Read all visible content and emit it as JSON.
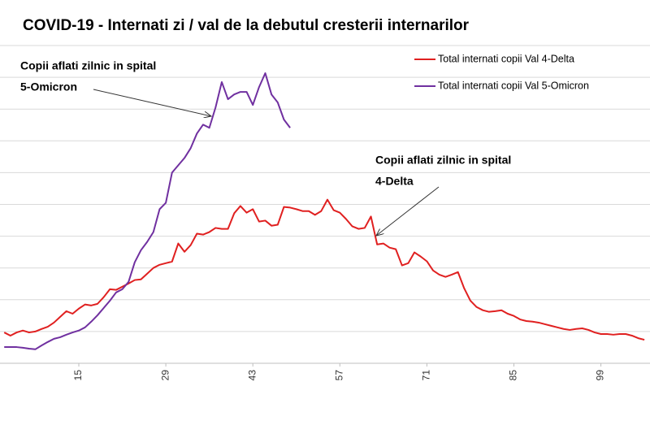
{
  "chart_data": {
    "type": "line",
    "title": "COVID-19 - Internati zi / val de la debutul cresterii internarilor",
    "annotations": [
      [
        "Copii aflati zilnic in spital",
        "5-Omicron"
      ],
      [
        "Copii aflati zilnic in spital",
        "4-Delta"
      ]
    ],
    "x": [
      3,
      4,
      5,
      6,
      7,
      8,
      9,
      10,
      11,
      12,
      13,
      14,
      15,
      16,
      17,
      18,
      19,
      20,
      21,
      22,
      23,
      24,
      25,
      26,
      27,
      28,
      29,
      30,
      31,
      32,
      33,
      34,
      35,
      36,
      37,
      38,
      39,
      40,
      41,
      42,
      43,
      44,
      45,
      46,
      47,
      48,
      49,
      50,
      51,
      52,
      53,
      54,
      55,
      56,
      57,
      58,
      59,
      60,
      61,
      62,
      63,
      64,
      65,
      66,
      67,
      68,
      69,
      70,
      71,
      72,
      73,
      74,
      75,
      76,
      77,
      78,
      79,
      80,
      81,
      82,
      83,
      84,
      85,
      86,
      87,
      88,
      89,
      90,
      91,
      92,
      93,
      94,
      95,
      96,
      97,
      98,
      99,
      100,
      101,
      102,
      103,
      104,
      105,
      106
    ],
    "series": [
      {
        "name": "Total internati copii Val 4-Delta",
        "color": "#e02020",
        "values": [
          0.97,
          0.87,
          0.97,
          1.03,
          0.97,
          1.0,
          1.08,
          1.15,
          1.28,
          1.46,
          1.64,
          1.56,
          1.72,
          1.85,
          1.82,
          1.87,
          2.08,
          2.33,
          2.31,
          2.41,
          2.51,
          2.62,
          2.64,
          2.82,
          3.0,
          3.1,
          3.15,
          3.2,
          3.77,
          3.51,
          3.72,
          4.08,
          4.05,
          4.13,
          4.26,
          4.23,
          4.23,
          4.72,
          4.95,
          4.74,
          4.85,
          4.46,
          4.49,
          4.33,
          4.36,
          4.92,
          4.9,
          4.85,
          4.79,
          4.79,
          4.67,
          4.79,
          5.15,
          4.82,
          4.74,
          4.54,
          4.31,
          4.23,
          4.26,
          4.62,
          3.74,
          3.77,
          3.64,
          3.59,
          3.08,
          3.15,
          3.49,
          3.36,
          3.21,
          2.92,
          2.79,
          2.72,
          2.79,
          2.87,
          2.36,
          1.97,
          1.77,
          1.67,
          1.62,
          1.64,
          1.67,
          1.56,
          1.49,
          1.38,
          1.33,
          1.31,
          1.28,
          1.23,
          1.18,
          1.13,
          1.08,
          1.05,
          1.08,
          1.1,
          1.05,
          0.97,
          0.92,
          0.92,
          0.9,
          0.92,
          0.92,
          0.87,
          0.79,
          0.74
        ]
      },
      {
        "name": "Total internati copii Val 5-Omicron",
        "color": "#7030a0",
        "values": [
          0.51,
          0.51,
          0.51,
          0.49,
          0.46,
          0.44,
          0.56,
          0.67,
          0.77,
          0.82,
          0.9,
          0.97,
          1.03,
          1.13,
          1.31,
          1.51,
          1.74,
          1.97,
          2.23,
          2.33,
          2.56,
          3.18,
          3.56,
          3.82,
          4.13,
          4.85,
          5.05,
          6.0,
          6.23,
          6.46,
          6.77,
          7.23,
          7.51,
          7.41,
          8.05,
          8.85,
          8.31,
          8.46,
          8.54,
          8.54,
          8.13,
          8.69,
          9.13,
          8.46,
          8.21,
          7.67,
          7.41,
          null,
          null,
          null,
          null,
          null,
          null,
          null,
          null,
          null,
          null,
          null,
          null,
          null,
          null,
          null,
          null,
          null,
          null,
          null,
          null,
          null,
          null,
          null,
          null,
          null,
          null,
          null,
          null,
          null,
          null,
          null,
          null,
          null,
          null,
          null,
          null,
          null,
          null,
          null,
          null,
          null,
          null,
          null,
          null,
          null,
          null,
          null,
          null,
          null,
          null,
          null,
          null,
          null,
          null,
          null,
          null,
          null
        ]
      }
    ],
    "xlim": [
      2.32,
      106.9
    ],
    "xticks": [
      15,
      29,
      43,
      57,
      71,
      85,
      99
    ],
    "ylim": [
      0,
      10
    ],
    "yticks": [
      1,
      2,
      3,
      4,
      5,
      6,
      7,
      8,
      9,
      10
    ],
    "grid": true
  }
}
